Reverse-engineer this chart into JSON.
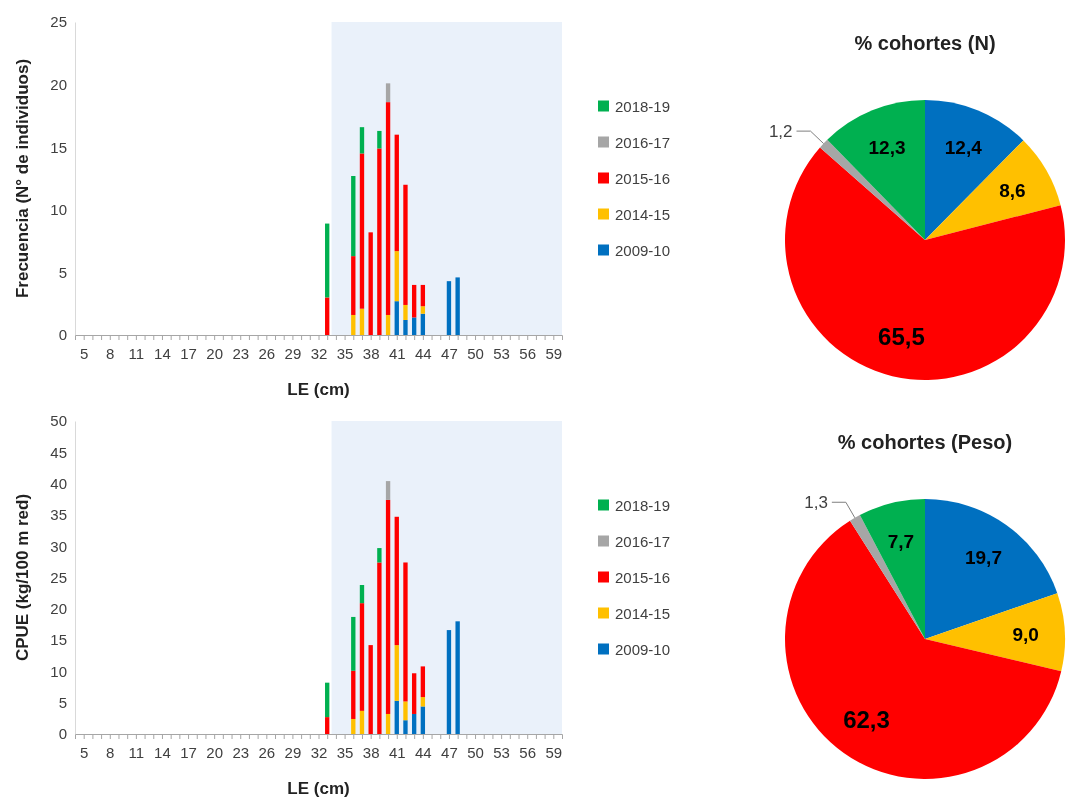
{
  "chart_data": [
    {
      "type": "bar",
      "stacked": true,
      "xlabel": "LE (cm)",
      "ylabel": "Frecuencia (N° de individuos)",
      "legend": "right",
      "grid": false,
      "x": [
        33,
        36,
        37,
        38,
        39,
        40,
        41,
        42,
        43,
        44,
        47,
        48
      ],
      "xlim": [
        4,
        60
      ],
      "xticks": [
        5,
        {
          "value": 6,
          "label": null
        },
        {
          "value": 7,
          "label": null
        },
        8,
        {
          "value": 9,
          "label": null
        },
        {
          "value": 10,
          "label": null
        },
        11,
        {
          "value": 12,
          "label": null
        },
        {
          "value": 13,
          "label": null
        },
        14,
        {
          "value": 15,
          "label": null
        },
        {
          "value": 16,
          "label": null
        },
        17,
        {
          "value": 18,
          "label": null
        },
        {
          "value": 19,
          "label": null
        },
        20,
        {
          "value": 21,
          "label": null
        },
        {
          "value": 22,
          "label": null
        },
        23,
        {
          "value": 24,
          "label": null
        },
        {
          "value": 25,
          "label": null
        },
        26,
        {
          "value": 27,
          "label": null
        },
        {
          "value": 28,
          "label": null
        },
        29,
        {
          "value": 30,
          "label": null
        },
        {
          "value": 31,
          "label": null
        },
        32,
        {
          "value": 33,
          "label": null
        },
        {
          "value": 34,
          "label": null
        },
        35,
        {
          "value": 36,
          "label": null
        },
        {
          "value": 37,
          "label": null
        },
        38,
        {
          "value": 39,
          "label": null
        },
        {
          "value": 40,
          "label": null
        },
        41,
        {
          "value": 42,
          "label": null
        },
        {
          "value": 43,
          "label": null
        },
        44,
        {
          "value": 45,
          "label": null
        },
        {
          "value": 46,
          "label": null
        },
        47,
        {
          "value": 48,
          "label": null
        },
        {
          "value": 49,
          "label": null
        },
        50,
        {
          "value": 51,
          "label": null
        },
        {
          "value": 52,
          "label": null
        },
        53,
        {
          "value": 54,
          "label": null
        },
        {
          "value": 55,
          "label": null
        },
        56,
        {
          "value": 57,
          "label": null
        },
        {
          "value": 58,
          "label": null
        },
        59
      ],
      "ylim": [
        0,
        25
      ],
      "yticks": [
        0,
        5,
        10,
        15,
        20,
        25
      ],
      "bands": [
        {
          "axis": "x",
          "from": 33.5,
          "to": 60,
          "color": "#eaf1fa"
        }
      ],
      "series": [
        {
          "name": "2009-10",
          "color": "#0070c0",
          "values": [
            null,
            null,
            null,
            null,
            null,
            null,
            2.7,
            1.2,
            1.4,
            1.7,
            4.3,
            4.6
          ]
        },
        {
          "name": "2014-15",
          "color": "#ffc000",
          "values": [
            null,
            1.6,
            2.1,
            null,
            null,
            1.6,
            4.0,
            1.2,
            null,
            0.6,
            null,
            null
          ]
        },
        {
          "name": "2015-16",
          "color": "#ff0000",
          "values": [
            3.0,
            4.7,
            12.4,
            8.2,
            14.9,
            17.0,
            9.3,
            9.6,
            2.6,
            1.7,
            null,
            null
          ]
        },
        {
          "name": "2016-17",
          "color": "#a6a6a6",
          "values": [
            null,
            null,
            null,
            null,
            null,
            1.5,
            null,
            null,
            null,
            null,
            null,
            null
          ]
        },
        {
          "name": "2018-19",
          "color": "#00b050",
          "values": [
            5.9,
            6.4,
            2.1,
            null,
            1.4,
            null,
            null,
            null,
            null,
            null,
            null,
            null
          ]
        }
      ]
    },
    {
      "type": "pie",
      "title": "% cohortes (N)",
      "categories": [
        null,
        null,
        null,
        null,
        null
      ],
      "values": [
        12.4,
        8.6,
        65.5,
        1.2,
        12.3
      ],
      "colors": [
        "#0070c0",
        "#ffc000",
        "#ff0000",
        "#a6a6a6",
        "#00b050"
      ],
      "value_labels": [
        "12,4",
        "8,6",
        "65,5",
        "1,2",
        "12,3"
      ]
    },
    {
      "type": "bar",
      "stacked": true,
      "xlabel": "LE (cm)",
      "ylabel": "CPUE (kg/100 m red)",
      "legend": "right",
      "grid": false,
      "x": [
        33,
        36,
        37,
        38,
        39,
        40,
        41,
        42,
        43,
        44,
        47,
        48
      ],
      "xlim": [
        4,
        60
      ],
      "xticks": [
        5,
        {
          "value": 6,
          "label": null
        },
        {
          "value": 7,
          "label": null
        },
        8,
        {
          "value": 9,
          "label": null
        },
        {
          "value": 10,
          "label": null
        },
        11,
        {
          "value": 12,
          "label": null
        },
        {
          "value": 13,
          "label": null
        },
        14,
        {
          "value": 15,
          "label": null
        },
        {
          "value": 16,
          "label": null
        },
        17,
        {
          "value": 18,
          "label": null
        },
        {
          "value": 19,
          "label": null
        },
        20,
        {
          "value": 21,
          "label": null
        },
        {
          "value": 22,
          "label": null
        },
        23,
        {
          "value": 24,
          "label": null
        },
        {
          "value": 25,
          "label": null
        },
        26,
        {
          "value": 27,
          "label": null
        },
        {
          "value": 28,
          "label": null
        },
        29,
        {
          "value": 30,
          "label": null
        },
        {
          "value": 31,
          "label": null
        },
        32,
        {
          "value": 33,
          "label": null
        },
        {
          "value": 34,
          "label": null
        },
        35,
        {
          "value": 36,
          "label": null
        },
        {
          "value": 37,
          "label": null
        },
        38,
        {
          "value": 39,
          "label": null
        },
        {
          "value": 40,
          "label": null
        },
        41,
        {
          "value": 42,
          "label": null
        },
        {
          "value": 43,
          "label": null
        },
        44,
        {
          "value": 45,
          "label": null
        },
        {
          "value": 46,
          "label": null
        },
        47,
        {
          "value": 48,
          "label": null
        },
        {
          "value": 49,
          "label": null
        },
        50,
        {
          "value": 51,
          "label": null
        },
        {
          "value": 52,
          "label": null
        },
        53,
        {
          "value": 54,
          "label": null
        },
        {
          "value": 55,
          "label": null
        },
        56,
        {
          "value": 57,
          "label": null
        },
        {
          "value": 58,
          "label": null
        },
        59
      ],
      "ylim": [
        0,
        50
      ],
      "yticks": [
        0,
        5,
        10,
        15,
        20,
        25,
        30,
        35,
        40,
        45,
        50
      ],
      "bands": [
        {
          "axis": "x",
          "from": 33.5,
          "to": 60,
          "color": "#eaf1fa"
        }
      ],
      "series": [
        {
          "name": "2009-10",
          "color": "#0070c0",
          "values": [
            null,
            null,
            null,
            null,
            null,
            null,
            5.3,
            2.2,
            3.2,
            4.4,
            16.6,
            18.0
          ]
        },
        {
          "name": "2014-15",
          "color": "#ffc000",
          "values": [
            null,
            2.4,
            3.7,
            null,
            null,
            3.2,
            8.9,
            3.0,
            null,
            1.5,
            null,
            null
          ]
        },
        {
          "name": "2015-16",
          "color": "#ff0000",
          "values": [
            2.7,
            7.7,
            17.2,
            14.2,
            27.4,
            34.2,
            20.5,
            22.2,
            6.5,
            4.9,
            null,
            null
          ]
        },
        {
          "name": "2016-17",
          "color": "#a6a6a6",
          "values": [
            null,
            null,
            null,
            null,
            null,
            3.0,
            null,
            null,
            null,
            null,
            null,
            null
          ]
        },
        {
          "name": "2018-19",
          "color": "#00b050",
          "values": [
            5.5,
            8.6,
            2.9,
            null,
            2.3,
            null,
            null,
            null,
            null,
            null,
            null,
            null
          ]
        }
      ]
    },
    {
      "type": "pie",
      "title": "% cohortes (Peso)",
      "categories": [
        null,
        null,
        null,
        null,
        null
      ],
      "values": [
        19.7,
        9.0,
        62.3,
        1.3,
        7.7
      ],
      "colors": [
        "#0070c0",
        "#ffc000",
        "#ff0000",
        "#a6a6a6",
        "#00b050"
      ],
      "value_labels": [
        "19,7",
        "9,0",
        "62,3",
        "1,3",
        "7,7"
      ]
    }
  ]
}
